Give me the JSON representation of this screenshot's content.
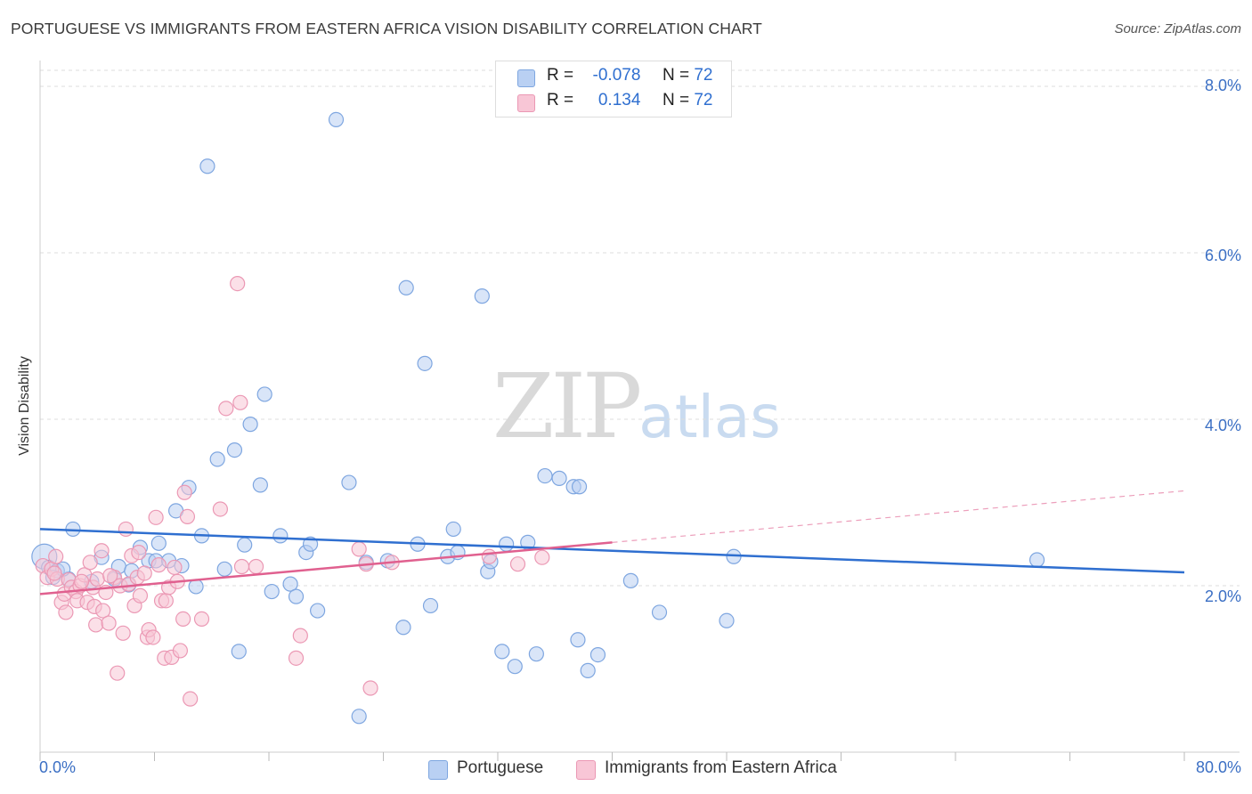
{
  "title": "PORTUGUESE VS IMMIGRANTS FROM EASTERN AFRICA VISION DISABILITY CORRELATION CHART",
  "source": "Source: ZipAtlas.com",
  "watermark": {
    "zip": "ZIP",
    "atlas": "atlas"
  },
  "stats": {
    "r_label": "R =",
    "n_label": "N =",
    "rows": [
      {
        "r": "-0.078",
        "n": "72",
        "fill": "#b9d0f3",
        "stroke": "#7ea6e0"
      },
      {
        "r": " 0.134",
        "n": "72",
        "fill": "#f8c6d6",
        "stroke": "#eb98b4"
      }
    ]
  },
  "legend": [
    {
      "label": "Portuguese",
      "fill": "#b9d0f3",
      "stroke": "#7ea6e0"
    },
    {
      "label": "Immigrants from Eastern Africa",
      "fill": "#f8c6d6",
      "stroke": "#eb98b4"
    }
  ],
  "chart_data": {
    "type": "scatter",
    "title": "PORTUGUESE VS IMMIGRANTS FROM EASTERN AFRICA VISION DISABILITY CORRELATION CHART",
    "xlabel": "",
    "ylabel": "Vision Disability",
    "xlim": [
      0,
      80
    ],
    "ylim": [
      0,
      8.4
    ],
    "x_tick_labels": [
      "0.0%",
      "80.0%"
    ],
    "y_ticks": [
      2,
      4,
      6,
      8
    ],
    "y_tick_labels": [
      "2.0%",
      "4.0%",
      "6.0%",
      "8.0%"
    ],
    "grid": "horizontal dashed",
    "colors": {
      "portuguese": "#2f6fd0",
      "eastern_africa": "#e0608f"
    },
    "series": [
      {
        "name": "Portuguese",
        "color": "#7ea6e0",
        "trend": {
          "x": [
            0,
            80
          ],
          "y": [
            2.68,
            2.16
          ],
          "style": "solid"
        },
        "points": [
          [
            0.3,
            2.35
          ],
          [
            0.6,
            2.22
          ],
          [
            1.2,
            2.18
          ],
          [
            2.3,
            2.68
          ],
          [
            2.0,
            2.08
          ],
          [
            3.6,
            2.05
          ],
          [
            4.3,
            2.34
          ],
          [
            5.2,
            2.08
          ],
          [
            5.5,
            2.23
          ],
          [
            6.2,
            2.01
          ],
          [
            6.4,
            2.18
          ],
          [
            7.0,
            2.46
          ],
          [
            7.6,
            2.3
          ],
          [
            8.1,
            2.3
          ],
          [
            8.3,
            2.51
          ],
          [
            9.0,
            2.3
          ],
          [
            9.5,
            2.9
          ],
          [
            9.9,
            2.24
          ],
          [
            10.4,
            3.18
          ],
          [
            10.9,
            1.99
          ],
          [
            11.3,
            2.6
          ],
          [
            11.7,
            7.04
          ],
          [
            12.4,
            3.52
          ],
          [
            12.9,
            2.2
          ],
          [
            13.6,
            3.63
          ],
          [
            13.9,
            1.21
          ],
          [
            14.3,
            2.49
          ],
          [
            14.7,
            3.94
          ],
          [
            15.4,
            3.21
          ],
          [
            15.7,
            4.3
          ],
          [
            16.2,
            1.93
          ],
          [
            16.8,
            2.6
          ],
          [
            17.5,
            2.02
          ],
          [
            17.9,
            1.87
          ],
          [
            18.6,
            2.4
          ],
          [
            18.9,
            2.5
          ],
          [
            19.4,
            1.7
          ],
          [
            20.7,
            7.6
          ],
          [
            21.6,
            3.24
          ],
          [
            22.3,
            0.43
          ],
          [
            22.8,
            2.28
          ],
          [
            24.3,
            2.3
          ],
          [
            25.4,
            1.5
          ],
          [
            25.6,
            5.58
          ],
          [
            26.4,
            2.5
          ],
          [
            26.9,
            4.67
          ],
          [
            27.3,
            1.76
          ],
          [
            28.5,
            2.35
          ],
          [
            28.9,
            2.68
          ],
          [
            29.2,
            2.4
          ],
          [
            30.9,
            5.48
          ],
          [
            31.3,
            2.17
          ],
          [
            31.5,
            2.29
          ],
          [
            32.3,
            1.21
          ],
          [
            32.6,
            2.5
          ],
          [
            33.2,
            1.03
          ],
          [
            34.1,
            2.52
          ],
          [
            34.7,
            1.18
          ],
          [
            35.3,
            3.32
          ],
          [
            36.3,
            3.29
          ],
          [
            37.3,
            3.19
          ],
          [
            37.7,
            3.19
          ],
          [
            37.6,
            1.35
          ],
          [
            38.3,
            0.98
          ],
          [
            39.0,
            1.17
          ],
          [
            41.3,
            2.06
          ],
          [
            43.3,
            1.68
          ],
          [
            48.0,
            1.58
          ],
          [
            48.5,
            2.35
          ],
          [
            69.7,
            2.31
          ],
          [
            0.9,
            2.1
          ],
          [
            1.6,
            2.2
          ]
        ]
      },
      {
        "name": "Immigrants from Eastern Africa",
        "color": "#eb98b4",
        "trend": {
          "x": [
            0,
            40
          ],
          "y": [
            1.9,
            2.52
          ],
          "style": "solid",
          "extension": {
            "x": [
              40,
              80
            ],
            "y": [
              2.52,
              3.14
            ],
            "style": "dashed"
          }
        },
        "points": [
          [
            0.2,
            2.24
          ],
          [
            0.5,
            2.1
          ],
          [
            0.8,
            2.2
          ],
          [
            1.1,
            2.35
          ],
          [
            1.2,
            2.08
          ],
          [
            1.5,
            1.8
          ],
          [
            1.7,
            1.9
          ],
          [
            1.8,
            1.68
          ],
          [
            2.0,
            2.07
          ],
          [
            2.2,
            1.98
          ],
          [
            2.5,
            1.93
          ],
          [
            2.6,
            1.82
          ],
          [
            2.8,
            2.0
          ],
          [
            3.1,
            2.13
          ],
          [
            3.3,
            1.8
          ],
          [
            3.5,
            2.28
          ],
          [
            3.7,
            1.98
          ],
          [
            3.8,
            1.75
          ],
          [
            3.9,
            1.53
          ],
          [
            4.0,
            2.08
          ],
          [
            4.3,
            2.42
          ],
          [
            4.4,
            1.7
          ],
          [
            4.6,
            1.92
          ],
          [
            4.8,
            1.55
          ],
          [
            5.2,
            2.1
          ],
          [
            5.4,
            0.95
          ],
          [
            5.6,
            2.0
          ],
          [
            5.8,
            1.43
          ],
          [
            6.0,
            2.68
          ],
          [
            6.2,
            2.02
          ],
          [
            6.4,
            2.36
          ],
          [
            6.6,
            1.76
          ],
          [
            6.8,
            2.1
          ],
          [
            7.0,
            1.88
          ],
          [
            7.3,
            2.15
          ],
          [
            7.5,
            1.38
          ],
          [
            7.6,
            1.47
          ],
          [
            7.9,
            1.38
          ],
          [
            8.1,
            2.82
          ],
          [
            8.3,
            2.25
          ],
          [
            8.5,
            1.82
          ],
          [
            8.7,
            1.13
          ],
          [
            8.8,
            1.82
          ],
          [
            9.0,
            1.98
          ],
          [
            9.2,
            1.14
          ],
          [
            9.6,
            2.05
          ],
          [
            9.8,
            1.22
          ],
          [
            10.0,
            1.6
          ],
          [
            10.1,
            3.12
          ],
          [
            10.3,
            2.83
          ],
          [
            10.5,
            0.64
          ],
          [
            11.3,
            1.6
          ],
          [
            12.6,
            2.92
          ],
          [
            13.0,
            4.13
          ],
          [
            13.8,
            5.63
          ],
          [
            14.0,
            4.2
          ],
          [
            14.1,
            2.23
          ],
          [
            15.1,
            2.23
          ],
          [
            17.9,
            1.13
          ],
          [
            18.2,
            1.4
          ],
          [
            22.3,
            2.44
          ],
          [
            22.8,
            2.26
          ],
          [
            23.1,
            0.77
          ],
          [
            24.6,
            2.28
          ],
          [
            31.4,
            2.35
          ],
          [
            33.4,
            2.26
          ],
          [
            35.1,
            2.34
          ],
          [
            1.0,
            2.15
          ],
          [
            2.9,
            2.05
          ],
          [
            4.9,
            2.12
          ],
          [
            6.9,
            2.4
          ],
          [
            9.4,
            2.22
          ]
        ]
      }
    ]
  }
}
